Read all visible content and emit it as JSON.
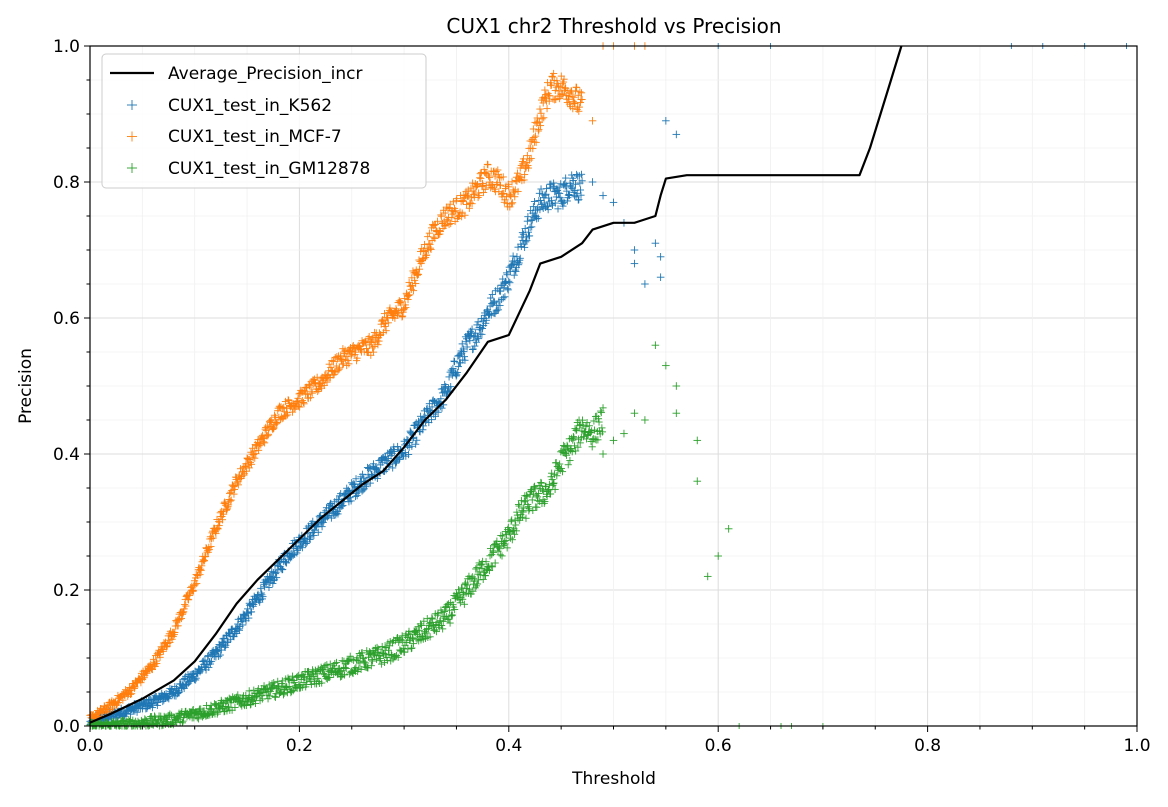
{
  "chart_data": {
    "type": "scatter",
    "title": "CUX1 chr2 Threshold vs Precision",
    "xlabel": "Threshold",
    "ylabel": "Precision",
    "xlim": [
      0.0,
      1.0
    ],
    "ylim": [
      0.0,
      1.0
    ],
    "xticks": [
      "0.0",
      "0.2",
      "0.4",
      "0.6",
      "0.8",
      "1.0"
    ],
    "yticks": [
      "0.0",
      "0.2",
      "0.4",
      "0.6",
      "0.8",
      "1.0"
    ],
    "grid": true,
    "legend_position": "upper-left",
    "colors": {
      "average": "#000000",
      "k562": "#1f77b4",
      "mcf7": "#ff7f0e",
      "gm12878": "#2ca02c",
      "major_grid": "#dddddd",
      "minor_grid": "#f0f0f0"
    },
    "line": {
      "name": "Average_Precision_incr",
      "points": [
        [
          0.0,
          0.005
        ],
        [
          0.02,
          0.018
        ],
        [
          0.05,
          0.04
        ],
        [
          0.08,
          0.067
        ],
        [
          0.1,
          0.095
        ],
        [
          0.12,
          0.135
        ],
        [
          0.14,
          0.18
        ],
        [
          0.16,
          0.215
        ],
        [
          0.18,
          0.245
        ],
        [
          0.2,
          0.275
        ],
        [
          0.22,
          0.305
        ],
        [
          0.24,
          0.33
        ],
        [
          0.26,
          0.355
        ],
        [
          0.28,
          0.375
        ],
        [
          0.3,
          0.41
        ],
        [
          0.32,
          0.45
        ],
        [
          0.34,
          0.48
        ],
        [
          0.36,
          0.52
        ],
        [
          0.38,
          0.565
        ],
        [
          0.4,
          0.575
        ],
        [
          0.42,
          0.64
        ],
        [
          0.43,
          0.68
        ],
        [
          0.45,
          0.69
        ],
        [
          0.47,
          0.71
        ],
        [
          0.48,
          0.73
        ],
        [
          0.5,
          0.74
        ],
        [
          0.52,
          0.74
        ],
        [
          0.54,
          0.75
        ],
        [
          0.545,
          0.78
        ],
        [
          0.55,
          0.805
        ],
        [
          0.57,
          0.81
        ],
        [
          0.6,
          0.81
        ],
        [
          0.65,
          0.81
        ],
        [
          0.7,
          0.81
        ],
        [
          0.735,
          0.81
        ],
        [
          0.745,
          0.85
        ],
        [
          0.755,
          0.9
        ],
        [
          0.765,
          0.95
        ],
        [
          0.775,
          1.0
        ]
      ]
    },
    "series": [
      {
        "name": "CUX1_test_in_K562",
        "color": "#1f77b4",
        "curve": [
          [
            0.0,
            0.005
          ],
          [
            0.03,
            0.02
          ],
          [
            0.06,
            0.035
          ],
          [
            0.08,
            0.05
          ],
          [
            0.1,
            0.075
          ],
          [
            0.12,
            0.105
          ],
          [
            0.13,
            0.125
          ],
          [
            0.15,
            0.165
          ],
          [
            0.17,
            0.21
          ],
          [
            0.19,
            0.255
          ],
          [
            0.2,
            0.27
          ],
          [
            0.22,
            0.3
          ],
          [
            0.24,
            0.33
          ],
          [
            0.26,
            0.36
          ],
          [
            0.28,
            0.385
          ],
          [
            0.3,
            0.405
          ],
          [
            0.32,
            0.45
          ],
          [
            0.34,
            0.49
          ],
          [
            0.35,
            0.53
          ],
          [
            0.36,
            0.56
          ],
          [
            0.37,
            0.58
          ],
          [
            0.38,
            0.61
          ],
          [
            0.39,
            0.63
          ],
          [
            0.4,
            0.66
          ],
          [
            0.41,
            0.7
          ],
          [
            0.42,
            0.74
          ],
          [
            0.43,
            0.77
          ],
          [
            0.44,
            0.78
          ],
          [
            0.45,
            0.78
          ],
          [
            0.46,
            0.8
          ],
          [
            0.47,
            0.79
          ]
        ],
        "outliers": [
          [
            0.48,
            0.8
          ],
          [
            0.49,
            0.78
          ],
          [
            0.5,
            0.77
          ],
          [
            0.51,
            0.74
          ],
          [
            0.52,
            0.7
          ],
          [
            0.52,
            0.68
          ],
          [
            0.53,
            0.65
          ],
          [
            0.54,
            0.71
          ],
          [
            0.545,
            0.69
          ],
          [
            0.545,
            0.66
          ],
          [
            0.55,
            0.89
          ],
          [
            0.56,
            0.87
          ]
        ]
      },
      {
        "name": "CUX1_test_in_MCF-7",
        "color": "#ff7f0e",
        "curve": [
          [
            0.0,
            0.01
          ],
          [
            0.02,
            0.03
          ],
          [
            0.04,
            0.055
          ],
          [
            0.06,
            0.09
          ],
          [
            0.08,
            0.14
          ],
          [
            0.1,
            0.21
          ],
          [
            0.12,
            0.29
          ],
          [
            0.14,
            0.36
          ],
          [
            0.16,
            0.41
          ],
          [
            0.18,
            0.46
          ],
          [
            0.2,
            0.48
          ],
          [
            0.22,
            0.505
          ],
          [
            0.24,
            0.54
          ],
          [
            0.26,
            0.555
          ],
          [
            0.27,
            0.56
          ],
          [
            0.28,
            0.59
          ],
          [
            0.3,
            0.62
          ],
          [
            0.31,
            0.66
          ],
          [
            0.32,
            0.7
          ],
          [
            0.33,
            0.73
          ],
          [
            0.34,
            0.75
          ],
          [
            0.36,
            0.77
          ],
          [
            0.38,
            0.81
          ],
          [
            0.39,
            0.8
          ],
          [
            0.4,
            0.78
          ],
          [
            0.41,
            0.8
          ],
          [
            0.42,
            0.84
          ],
          [
            0.43,
            0.9
          ],
          [
            0.44,
            0.94
          ],
          [
            0.45,
            0.94
          ],
          [
            0.46,
            0.93
          ],
          [
            0.47,
            0.91
          ]
        ],
        "outliers": [
          [
            0.48,
            0.89
          ],
          [
            0.49,
            1.0
          ],
          [
            0.5,
            1.0
          ],
          [
            0.52,
            1.0
          ],
          [
            0.53,
            1.0
          ]
        ]
      },
      {
        "name": "CUX1_test_in_GM12878",
        "color": "#2ca02c",
        "curve": [
          [
            0.0,
            0.0
          ],
          [
            0.04,
            0.003
          ],
          [
            0.08,
            0.01
          ],
          [
            0.1,
            0.018
          ],
          [
            0.13,
            0.03
          ],
          [
            0.16,
            0.045
          ],
          [
            0.19,
            0.06
          ],
          [
            0.22,
            0.075
          ],
          [
            0.25,
            0.09
          ],
          [
            0.28,
            0.105
          ],
          [
            0.3,
            0.12
          ],
          [
            0.32,
            0.14
          ],
          [
            0.34,
            0.16
          ],
          [
            0.36,
            0.2
          ],
          [
            0.38,
            0.24
          ],
          [
            0.4,
            0.28
          ],
          [
            0.41,
            0.31
          ],
          [
            0.42,
            0.33
          ],
          [
            0.43,
            0.34
          ],
          [
            0.44,
            0.35
          ],
          [
            0.45,
            0.39
          ],
          [
            0.46,
            0.41
          ],
          [
            0.47,
            0.44
          ],
          [
            0.48,
            0.43
          ],
          [
            0.49,
            0.45
          ]
        ],
        "outliers": [
          [
            0.49,
            0.4
          ],
          [
            0.5,
            0.42
          ],
          [
            0.51,
            0.43
          ],
          [
            0.52,
            0.46
          ],
          [
            0.53,
            0.45
          ],
          [
            0.54,
            0.56
          ],
          [
            0.55,
            0.53
          ],
          [
            0.56,
            0.5
          ],
          [
            0.56,
            0.46
          ],
          [
            0.58,
            0.42
          ],
          [
            0.58,
            0.36
          ],
          [
            0.59,
            0.22
          ],
          [
            0.6,
            0.25
          ],
          [
            0.61,
            0.29
          ]
        ]
      }
    ],
    "top_marks": [
      [
        0.88,
        1.0
      ],
      [
        0.91,
        1.0
      ],
      [
        0.95,
        1.0
      ],
      [
        0.99,
        1.0
      ],
      [
        0.6,
        1.0
      ],
      [
        0.65,
        1.0
      ]
    ],
    "bottom_marks": [
      [
        0.62,
        0.0
      ],
      [
        0.66,
        0.0
      ],
      [
        0.67,
        0.0
      ],
      [
        0.7,
        0.0
      ]
    ]
  }
}
